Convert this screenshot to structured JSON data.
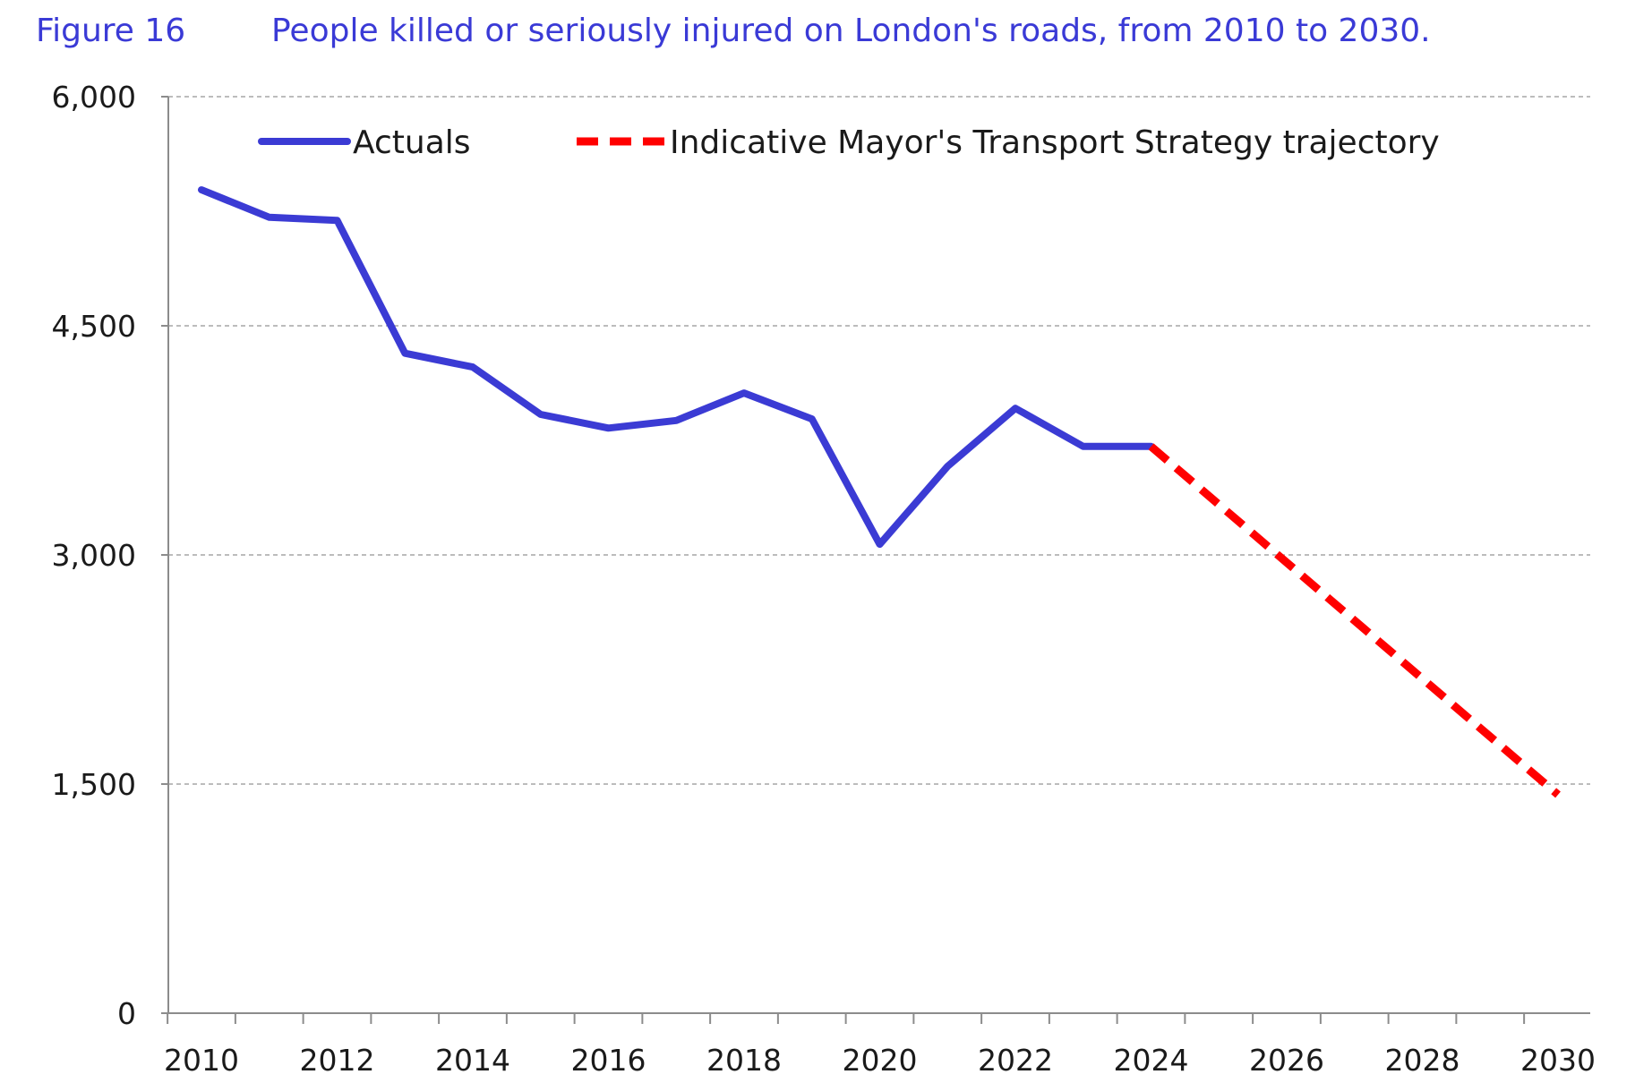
{
  "figure": {
    "label": "Figure 16",
    "title": "People killed or seriously injured on London's roads, from 2010 to 2030."
  },
  "colors": {
    "title": "#3a3ad6",
    "actuals": "#3b3bd4",
    "trajectory": "#ff0000",
    "grid": "#a6a6a6",
    "axis": "#8c8c8c",
    "text": "#1a1a1a"
  },
  "chart_data": {
    "type": "line",
    "title": "People killed or seriously injured on London's roads, from 2010 to 2030.",
    "xlabel": "",
    "ylabel": "",
    "xlim": [
      2010,
      2030
    ],
    "ylim": [
      0,
      6000
    ],
    "x_ticks": [
      2010,
      2012,
      2014,
      2016,
      2018,
      2020,
      2022,
      2024,
      2026,
      2028,
      2030
    ],
    "x_tick_labels": [
      "2010",
      "2012",
      "2014",
      "2016",
      "2018",
      "2020",
      "2022",
      "2024",
      "2026",
      "2028",
      "2030"
    ],
    "y_ticks": [
      0,
      1500,
      3000,
      4500,
      6000
    ],
    "y_tick_labels": [
      "0",
      "1,500",
      "3,000",
      "4,500",
      "6,000"
    ],
    "grid": "horizontal dashed",
    "legend_position": "top",
    "series": [
      {
        "name": "Actuals",
        "style": "solid",
        "x": [
          2010,
          2011,
          2012,
          2013,
          2014,
          2015,
          2016,
          2017,
          2018,
          2019,
          2020,
          2021,
          2022,
          2023,
          2024
        ],
        "values": [
          5390,
          5210,
          5190,
          4320,
          4230,
          3920,
          3830,
          3880,
          4060,
          3890,
          3070,
          3580,
          3960,
          3710,
          3710
        ]
      },
      {
        "name": "Indicative Mayor's Transport Strategy trajectory",
        "style": "dashed",
        "x": [
          2024,
          2030
        ],
        "values": [
          3710,
          1430
        ]
      }
    ]
  }
}
